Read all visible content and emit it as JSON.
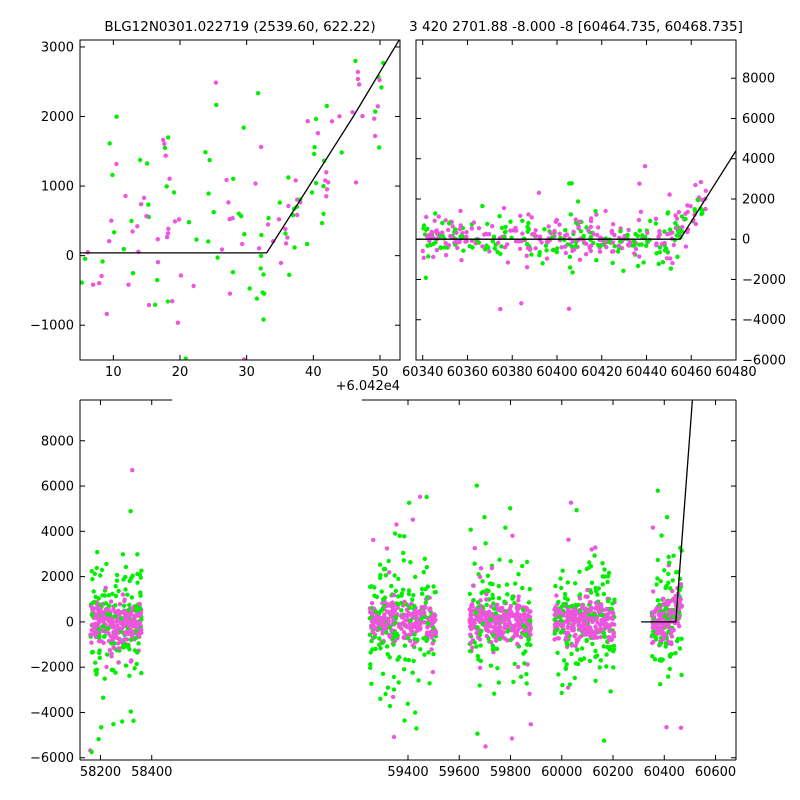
{
  "colors": {
    "green": "#00ee00",
    "magenta": "#ee55dd",
    "model": "#000000"
  },
  "chart_data": [
    {
      "type": "scatter",
      "title": "BLG12N0301.022719 (2539.60, 622.22)",
      "x_offset_label": "+6.042e4",
      "xlim": [
        5,
        53
      ],
      "ylim": [
        -1500,
        3100
      ],
      "x_ticks": [
        10,
        20,
        30,
        40,
        50
      ],
      "y_ticks": [
        -1000,
        0,
        1000,
        2000,
        3000
      ],
      "grid": false,
      "model_line": {
        "x": [
          5,
          33,
          46,
          53
        ],
        "y": [
          40,
          40,
          2000,
          3120
        ]
      }
    },
    {
      "type": "scatter",
      "title": "3 420 2701.88 -8.000 -8 [60464.735, 60468.735]",
      "xlim": [
        60337,
        60480
      ],
      "ylim": [
        -6000,
        9900
      ],
      "x_ticks": [
        60340,
        60360,
        60380,
        60400,
        60420,
        60440,
        60460,
        60480
      ],
      "y_ticks": [
        -6000,
        -4000,
        -2000,
        0,
        2000,
        4000,
        6000,
        8000
      ],
      "y_axis_side": "right",
      "grid": false,
      "model_line": {
        "x": [
          60337,
          60455,
          60480
        ],
        "y": [
          0,
          0,
          4400
        ]
      }
    },
    {
      "type": "scatter",
      "title": "",
      "xlim": [
        58120,
        60680
      ],
      "ylim": [
        -6100,
        9800
      ],
      "x_ticks": [
        58200,
        58400,
        59400,
        59600,
        59800,
        60000,
        60200,
        60400,
        60600
      ],
      "y_ticks": [
        -6000,
        -4000,
        -2000,
        0,
        2000,
        4000,
        6000,
        8000
      ],
      "axis_break_between": [
        58480,
        59220
      ],
      "grid": false,
      "model_line": {
        "x": [
          60310,
          60445,
          60510
        ],
        "y": [
          0,
          0,
          9800
        ]
      },
      "seasons": [
        {
          "center": 58260,
          "halfwidth": 100
        },
        {
          "center": 59380,
          "halfwidth": 130
        },
        {
          "center": 59760,
          "halfwidth": 120
        },
        {
          "center": 60090,
          "halfwidth": 120
        },
        {
          "center": 60410,
          "halfwidth": 60
        }
      ]
    }
  ]
}
